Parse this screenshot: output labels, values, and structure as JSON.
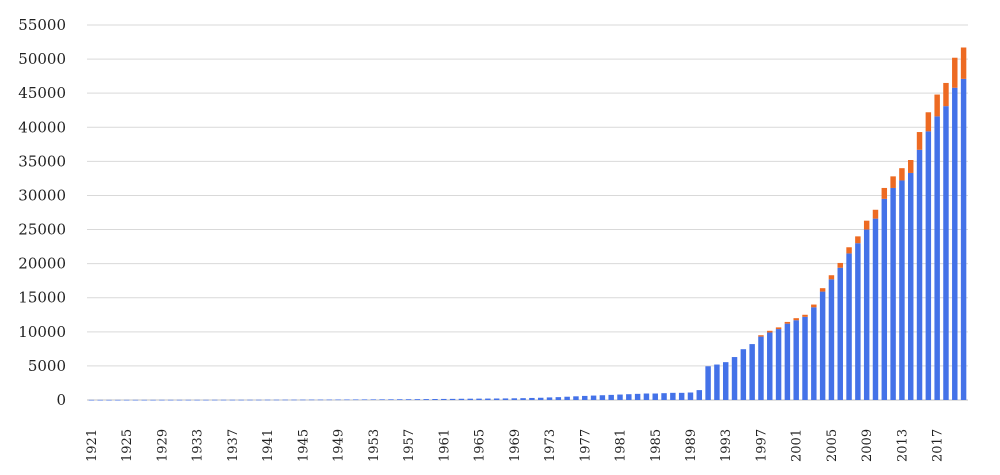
{
  "chart_data": {
    "type": "bar",
    "stacked": true,
    "title": "",
    "xlabel": "",
    "ylabel": "",
    "ylim": [
      0,
      55000
    ],
    "yticks": [
      0,
      5000,
      10000,
      15000,
      20000,
      25000,
      30000,
      35000,
      40000,
      45000,
      50000,
      55000
    ],
    "grid": true,
    "legend": "none",
    "x": [
      1921,
      1922,
      1923,
      1924,
      1925,
      1926,
      1927,
      1928,
      1929,
      1930,
      1931,
      1932,
      1933,
      1934,
      1935,
      1936,
      1937,
      1938,
      1939,
      1940,
      1941,
      1942,
      1943,
      1944,
      1945,
      1946,
      1947,
      1948,
      1949,
      1950,
      1951,
      1952,
      1953,
      1954,
      1955,
      1956,
      1957,
      1958,
      1959,
      1960,
      1961,
      1962,
      1963,
      1964,
      1965,
      1966,
      1967,
      1968,
      1969,
      1970,
      1971,
      1972,
      1973,
      1974,
      1975,
      1976,
      1977,
      1978,
      1979,
      1980,
      1981,
      1982,
      1983,
      1984,
      1985,
      1986,
      1987,
      1988,
      1989,
      1990,
      1991,
      1992,
      1993,
      1994,
      1995,
      1996,
      1997,
      1998,
      1999,
      2000,
      2001,
      2002,
      2003,
      2004,
      2005,
      2006,
      2007,
      2008,
      2009,
      2010,
      2011,
      2012,
      2013,
      2014,
      2015,
      2016,
      2017,
      2018,
      2019,
      2020
    ],
    "xtick_labels": [
      "1921",
      "1925",
      "1929",
      "1933",
      "1937",
      "1941",
      "1945",
      "1949",
      "1953",
      "1957",
      "1961",
      "1965",
      "1969",
      "1973",
      "1977",
      "1981",
      "1985",
      "1989",
      "1993",
      "1997",
      "2001",
      "2005",
      "2009",
      "2013",
      "2017"
    ],
    "series": [
      {
        "color": "#4472e8",
        "values": [
          20,
          20,
          20,
          20,
          25,
          25,
          25,
          25,
          30,
          30,
          30,
          30,
          30,
          30,
          35,
          35,
          35,
          35,
          40,
          40,
          45,
          45,
          50,
          50,
          55,
          60,
          60,
          65,
          70,
          75,
          80,
          85,
          90,
          95,
          100,
          110,
          115,
          125,
          135,
          145,
          155,
          165,
          180,
          190,
          200,
          210,
          220,
          230,
          250,
          270,
          300,
          330,
          380,
          420,
          480,
          540,
          600,
          650,
          700,
          750,
          800,
          850,
          900,
          950,
          950,
          1000,
          1050,
          1050,
          1100,
          1450,
          4950,
          5200,
          5550,
          6300,
          7450,
          8200,
          9300,
          9900,
          10400,
          11200,
          11700,
          12200,
          13600,
          15900,
          17700,
          19400,
          21500,
          23000,
          25000,
          26600,
          29500,
          31100,
          32200,
          33300,
          36700,
          39400,
          41600,
          43100,
          45800,
          47100
        ],
        "note": "primary series"
      },
      {
        "color": "#ed6a22",
        "values": [
          0,
          0,
          0,
          0,
          0,
          0,
          0,
          0,
          0,
          0,
          0,
          0,
          0,
          0,
          0,
          0,
          0,
          0,
          0,
          0,
          0,
          0,
          0,
          0,
          0,
          0,
          0,
          0,
          0,
          0,
          0,
          0,
          0,
          0,
          0,
          0,
          0,
          0,
          0,
          0,
          0,
          0,
          0,
          0,
          0,
          0,
          0,
          0,
          0,
          0,
          0,
          0,
          0,
          0,
          0,
          0,
          0,
          0,
          0,
          0,
          0,
          0,
          0,
          0,
          0,
          0,
          0,
          0,
          0,
          0,
          0,
          0,
          0,
          0,
          0,
          0,
          200,
          250,
          250,
          250,
          300,
          300,
          400,
          500,
          600,
          700,
          900,
          1000,
          1300,
          1300,
          1600,
          1700,
          1800,
          1900,
          2600,
          2800,
          3200,
          3400,
          4400,
          4600
        ]
      }
    ]
  }
}
